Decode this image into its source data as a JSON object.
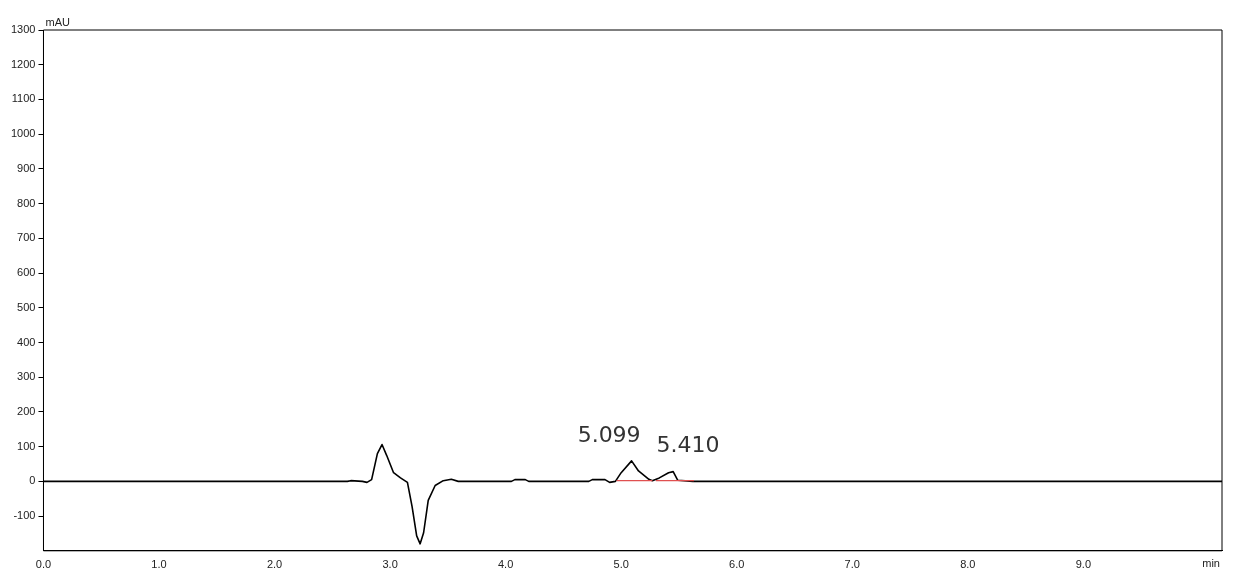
{
  "chart_data": {
    "type": "line",
    "xlabel": "min",
    "ylabel": "mAU",
    "xlim": [
      0,
      10.2
    ],
    "ylim": [
      -200,
      1300
    ],
    "xticks": [
      {
        "value": 0,
        "label": "0.0"
      },
      {
        "value": 1,
        "label": "1.0"
      },
      {
        "value": 2,
        "label": "2.0"
      },
      {
        "value": 3,
        "label": "3.0"
      },
      {
        "value": 4,
        "label": "4.0"
      },
      {
        "value": 5,
        "label": "5.0"
      },
      {
        "value": 6,
        "label": "6.0"
      },
      {
        "value": 7,
        "label": "7.0"
      },
      {
        "value": 8,
        "label": "8.0"
      },
      {
        "value": 9,
        "label": "9.0"
      }
    ],
    "yticks": [
      -100,
      0,
      100,
      200,
      300,
      400,
      500,
      600,
      700,
      800,
      900,
      1000,
      1100,
      1200,
      1300
    ],
    "grid": false,
    "legend": false,
    "marker": "none",
    "line_style": "solid",
    "series": [
      {
        "color": "#000000",
        "x": [
          0,
          2.63,
          2.66,
          2.76,
          2.8,
          2.84,
          2.89,
          2.93,
          2.97,
          3.03,
          3.09,
          3.15,
          3.19,
          3.23,
          3.26,
          3.29,
          3.33,
          3.39,
          3.46,
          3.53,
          3.59,
          4.05,
          4.08,
          4.17,
          4.2,
          4.72,
          4.75,
          4.86,
          4.9,
          4.95,
          5.0,
          5.09,
          5.15,
          5.24,
          5.27,
          5.33,
          5.41,
          5.45,
          5.49,
          5.62,
          10.2
        ],
        "values": [
          0,
          0,
          2,
          0,
          -3,
          5,
          80,
          106,
          75,
          25,
          10,
          -3,
          -72,
          -157,
          -180,
          -148,
          -55,
          -12,
          2,
          6,
          0,
          0,
          5,
          5,
          0,
          0,
          5,
          5,
          -3,
          0,
          25,
          59,
          30,
          6,
          2,
          10,
          25,
          28,
          3,
          0,
          0
        ]
      },
      {
        "color": "#e05050",
        "x": [
          4.96,
          5.27,
          5.28,
          5.3,
          5.63
        ],
        "values": [
          2,
          2,
          null,
          2,
          2
        ]
      }
    ],
    "annotations": [
      {
        "text": "5.099",
        "x": 5.099,
        "y": 59
      },
      {
        "text": "5.410",
        "x": 5.41,
        "y": 28
      }
    ]
  }
}
